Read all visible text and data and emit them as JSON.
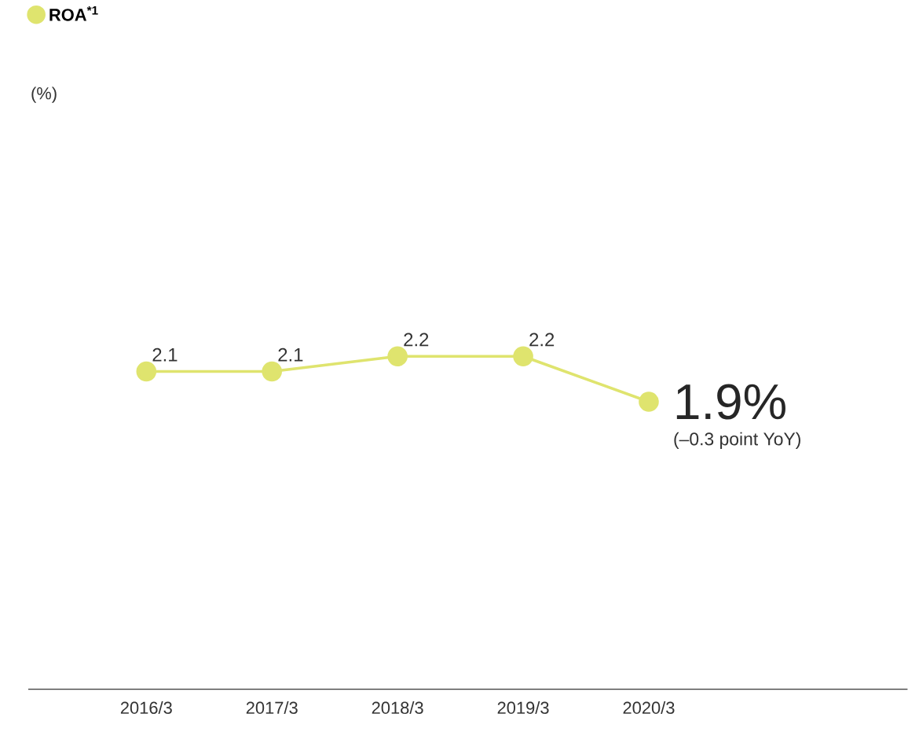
{
  "chart_data": {
    "type": "line",
    "categories": [
      "2016/3",
      "2017/3",
      "2018/3",
      "2019/3",
      "2020/3"
    ],
    "series": [
      {
        "name": "ROA$^{*1}$",
        "color": "#dfe46e",
        "values": [
          2.1,
          2.1,
          2.2,
          2.2,
          1.9
        ],
        "value_labels": [
          "2.1",
          "2.1",
          "2.2",
          "2.2",
          "1.9%"
        ]
      }
    ],
    "marker": "circle",
    "legend": "top left",
    "annotations": [
      "(%)",
      "(–0.3 point YoY)"
    ]
  }
}
